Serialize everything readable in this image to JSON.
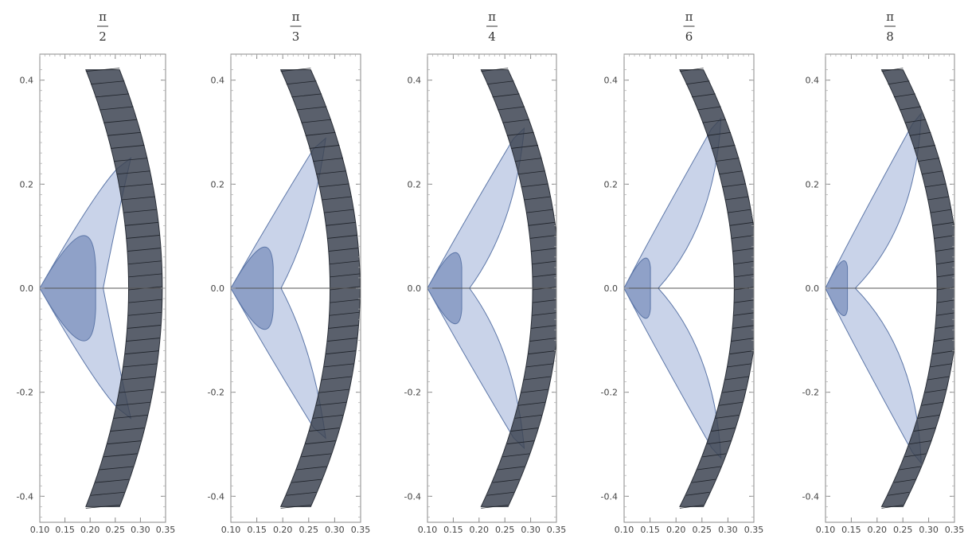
{
  "chart_data": [
    {
      "type": "area",
      "title_numerator": "π",
      "title_denominator": "2",
      "angle": 1.5707963,
      "xlim": [
        0.1,
        0.35
      ],
      "ylim": [
        -0.45,
        0.45
      ],
      "xticks": [
        "0.10",
        "0.15",
        "0.20",
        "0.25",
        "0.30",
        "0.35"
      ],
      "yticks": [
        "0.4",
        "0.2",
        "0.0",
        "-0.2",
        "-0.4"
      ],
      "tip_x": 0.1,
      "outer_x_at_center": 0.31,
      "band_ends_y": [
        -0.42,
        0.42
      ]
    },
    {
      "type": "area",
      "title_numerator": "π",
      "title_denominator": "3",
      "angle": 1.0471976,
      "xlim": [
        0.1,
        0.35
      ],
      "ylim": [
        -0.45,
        0.45
      ],
      "xticks": [
        "0.10",
        "0.15",
        "0.20",
        "0.25",
        "0.30",
        "0.35"
      ],
      "yticks": [
        "0.4",
        "0.2",
        "0.0",
        "-0.2",
        "-0.4"
      ],
      "tip_x": 0.1,
      "outer_x_at_center": 0.32,
      "band_ends_y": [
        -0.42,
        0.42
      ]
    },
    {
      "type": "area",
      "title_numerator": "π",
      "title_denominator": "4",
      "angle": 0.7853982,
      "xlim": [
        0.1,
        0.35
      ],
      "ylim": [
        -0.45,
        0.45
      ],
      "xticks": [
        "0.10",
        "0.15",
        "0.20",
        "0.25",
        "0.30",
        "0.35"
      ],
      "yticks": [
        "0.4",
        "0.2",
        "0.0",
        "-0.2",
        "-0.4"
      ],
      "tip_x": 0.1,
      "outer_x_at_center": 0.33,
      "band_ends_y": [
        -0.42,
        0.42
      ]
    },
    {
      "type": "area",
      "title_numerator": "π",
      "title_denominator": "6",
      "angle": 0.5235988,
      "xlim": [
        0.1,
        0.35
      ],
      "ylim": [
        -0.45,
        0.45
      ],
      "xticks": [
        "0.10",
        "0.15",
        "0.20",
        "0.25",
        "0.30",
        "0.35"
      ],
      "yticks": [
        "0.4",
        "0.2",
        "0.0",
        "-0.2",
        "-0.4"
      ],
      "tip_x": 0.1,
      "outer_x_at_center": 0.335,
      "band_ends_y": [
        -0.42,
        0.42
      ]
    },
    {
      "type": "area",
      "title_numerator": "π",
      "title_denominator": "8",
      "angle": 0.3926991,
      "xlim": [
        0.1,
        0.35
      ],
      "ylim": [
        -0.45,
        0.45
      ],
      "xticks": [
        "0.10",
        "0.15",
        "0.20",
        "0.25",
        "0.30",
        "0.35"
      ],
      "yticks": [
        "0.4",
        "0.2",
        "0.0",
        "-0.2",
        "-0.4"
      ],
      "tip_x": 0.1,
      "outer_x_at_center": 0.337,
      "band_ends_y": [
        -0.42,
        0.42
      ]
    }
  ],
  "colors": {
    "light_fill": "#c9d3e9",
    "mid_fill": "#8fa1c8",
    "dark_band": "#3d4452",
    "edge": "#5d77a8",
    "axis": "#555555"
  }
}
